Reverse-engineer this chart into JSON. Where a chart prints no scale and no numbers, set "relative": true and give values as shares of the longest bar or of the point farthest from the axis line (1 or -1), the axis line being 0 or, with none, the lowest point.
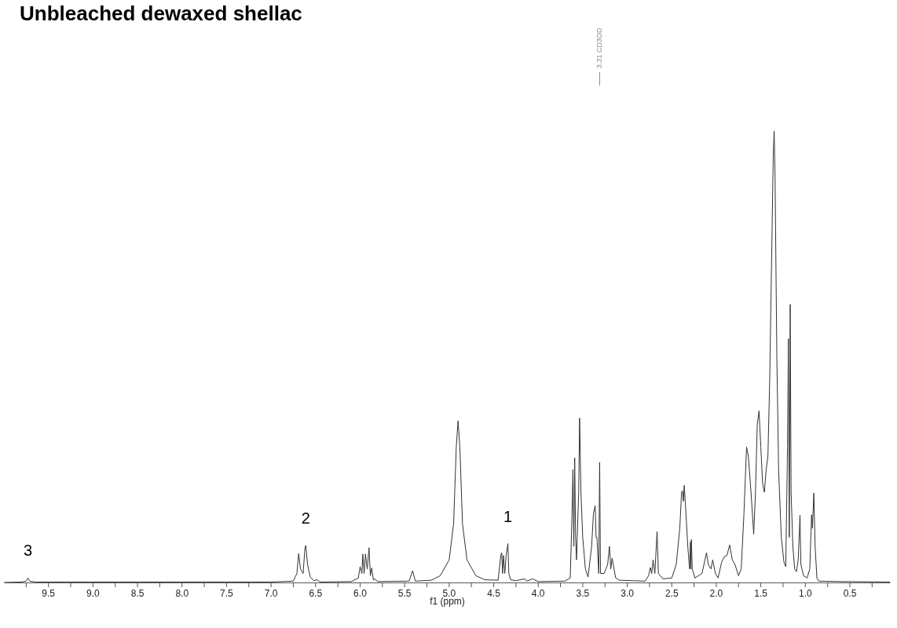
{
  "chart_data": {
    "type": "line",
    "title": "Unbleached dewaxed shellac",
    "xlabel": "f1 (ppm)",
    "relative": true,
    "xlim": [
      10.0,
      0.05
    ],
    "xticks": [
      {
        "value": 9.75,
        "label": null
      },
      9.5,
      {
        "value": 9.25,
        "label": null
      },
      {
        "value": 9.0,
        "label": "9.0"
      },
      {
        "value": 8.75,
        "label": null
      },
      8.5,
      {
        "value": 8.25,
        "label": null
      },
      {
        "value": 8.0,
        "label": "8.0"
      },
      {
        "value": 7.75,
        "label": null
      },
      7.5,
      {
        "value": 7.25,
        "label": null
      },
      {
        "value": 7.0,
        "label": "7.0"
      },
      {
        "value": 6.75,
        "label": null
      },
      6.5,
      {
        "value": 6.25,
        "label": null
      },
      {
        "value": 6.0,
        "label": "6.0"
      },
      {
        "value": 5.75,
        "label": null
      },
      5.5,
      {
        "value": 5.25,
        "label": null
      },
      {
        "value": 5.0,
        "label": "5.0"
      },
      {
        "value": 4.75,
        "label": null
      },
      4.5,
      {
        "value": 4.25,
        "label": null
      },
      {
        "value": 4.0,
        "label": "4.0"
      },
      {
        "value": 3.75,
        "label": null
      },
      3.5,
      {
        "value": 3.25,
        "label": null
      },
      {
        "value": 3.0,
        "label": "3.0"
      },
      {
        "value": 2.75,
        "label": null
      },
      2.5,
      {
        "value": 2.25,
        "label": null
      },
      {
        "value": 2.0,
        "label": "2.0"
      },
      {
        "value": 1.75,
        "label": null
      },
      1.5,
      {
        "value": 1.25,
        "label": null
      },
      {
        "value": 1.0,
        "label": "1.0"
      },
      {
        "value": 0.75,
        "label": null
      },
      0.5,
      {
        "value": 0.25,
        "label": null
      }
    ],
    "x": [
      10.0,
      9.8,
      9.75,
      9.73,
      9.71,
      9.65,
      7.0,
      6.75,
      6.71,
      6.69,
      6.67,
      6.64,
      6.62,
      6.61,
      6.59,
      6.56,
      6.52,
      6.48,
      6.45,
      6.1,
      6.02,
      6.0,
      5.98,
      5.97,
      5.955,
      5.94,
      5.92,
      5.9,
      5.885,
      5.87,
      5.85,
      5.84,
      5.8,
      5.45,
      5.41,
      5.38,
      5.2,
      5.1,
      5.0,
      4.95,
      4.92,
      4.9,
      4.88,
      4.85,
      4.8,
      4.7,
      4.6,
      4.45,
      4.42,
      4.41,
      4.4,
      4.39,
      4.375,
      4.36,
      4.34,
      4.33,
      4.31,
      4.25,
      4.15,
      4.13,
      4.06,
      4.0,
      3.7,
      3.64,
      3.62,
      3.61,
      3.6,
      3.59,
      3.58,
      3.57,
      3.545,
      3.535,
      3.52,
      3.5,
      3.47,
      3.44,
      3.4,
      3.38,
      3.36,
      3.35,
      3.34,
      3.32,
      3.31,
      3.3,
      3.26,
      3.22,
      3.2,
      3.185,
      3.17,
      3.13,
      3.09,
      2.8,
      2.76,
      2.74,
      2.725,
      2.71,
      2.69,
      2.665,
      2.65,
      2.6,
      2.5,
      2.45,
      2.41,
      2.39,
      2.38,
      2.37,
      2.36,
      2.34,
      2.32,
      2.3,
      2.29,
      2.285,
      2.28,
      2.27,
      2.24,
      2.16,
      2.11,
      2.09,
      2.06,
      2.04,
      2.01,
      1.98,
      1.94,
      1.91,
      1.88,
      1.85,
      1.82,
      1.79,
      1.75,
      1.72,
      1.69,
      1.66,
      1.64,
      1.61,
      1.58,
      1.56,
      1.54,
      1.52,
      1.5,
      1.48,
      1.46,
      1.44,
      1.42,
      1.4,
      1.38,
      1.36,
      1.35,
      1.34,
      1.32,
      1.3,
      1.27,
      1.24,
      1.22,
      1.2,
      1.19,
      1.18,
      1.17,
      1.16,
      1.14,
      1.12,
      1.1,
      1.08,
      1.06,
      1.05,
      1.02,
      0.98,
      0.95,
      0.93,
      0.92,
      0.905,
      0.89,
      0.87,
      0.85,
      0.6,
      0.05
    ],
    "series": [
      {
        "color": "#333333",
        "values": [
          0,
          0.001,
          0.003,
          0.01,
          0.003,
          0.001,
          0.001,
          0.003,
          0.02,
          0.064,
          0.03,
          0.02,
          0.075,
          0.082,
          0.04,
          0.012,
          0.004,
          0.006,
          0.001,
          0.002,
          0.01,
          0.035,
          0.02,
          0.063,
          0.02,
          0.063,
          0.03,
          0.077,
          0.015,
          0.032,
          0.005,
          0.008,
          0.002,
          0.003,
          0.026,
          0.003,
          0.005,
          0.015,
          0.05,
          0.13,
          0.3,
          0.358,
          0.3,
          0.13,
          0.05,
          0.015,
          0.006,
          0.005,
          0.06,
          0.066,
          0.02,
          0.06,
          0.02,
          0.06,
          0.086,
          0.02,
          0.006,
          0.004,
          0.008,
          0.003,
          0.008,
          0.002,
          0.003,
          0.01,
          0.15,
          0.25,
          0.08,
          0.276,
          0.1,
          0.05,
          0.2,
          0.364,
          0.2,
          0.1,
          0.03,
          0.012,
          0.08,
          0.152,
          0.17,
          0.1,
          0.1,
          0.02,
          0.266,
          0.02,
          0.02,
          0.04,
          0.08,
          0.03,
          0.054,
          0.01,
          0.005,
          0.003,
          0.015,
          0.033,
          0.02,
          0.05,
          0.02,
          0.113,
          0.02,
          0.008,
          0.01,
          0.04,
          0.12,
          0.2,
          0.203,
          0.18,
          0.215,
          0.15,
          0.08,
          0.03,
          0.09,
          0.03,
          0.095,
          0.03,
          0.01,
          0.02,
          0.066,
          0.04,
          0.03,
          0.05,
          0.02,
          0.01,
          0.045,
          0.057,
          0.06,
          0.083,
          0.05,
          0.04,
          0.015,
          0.03,
          0.15,
          0.3,
          0.28,
          0.2,
          0.107,
          0.2,
          0.35,
          0.38,
          0.3,
          0.22,
          0.2,
          0.25,
          0.28,
          0.45,
          0.7,
          0.95,
          1.0,
          0.9,
          0.5,
          0.25,
          0.1,
          0.045,
          0.035,
          0.3,
          0.54,
          0.1,
          0.616,
          0.2,
          0.08,
          0.03,
          0.024,
          0.05,
          0.149,
          0.04,
          0.015,
          0.01,
          0.03,
          0.15,
          0.12,
          0.198,
          0.08,
          0.01,
          0.003,
          0.002,
          0.001
        ]
      }
    ],
    "annotations": [
      {
        "text": "1",
        "x": 4.34,
        "y": 0.086
      },
      {
        "text": "2",
        "x": 6.61,
        "y": 0.082
      },
      {
        "text": "3",
        "x": 9.73,
        "y": 0.01
      },
      {
        "text": "3.31 CD3OD",
        "x": 3.31
      }
    ]
  }
}
